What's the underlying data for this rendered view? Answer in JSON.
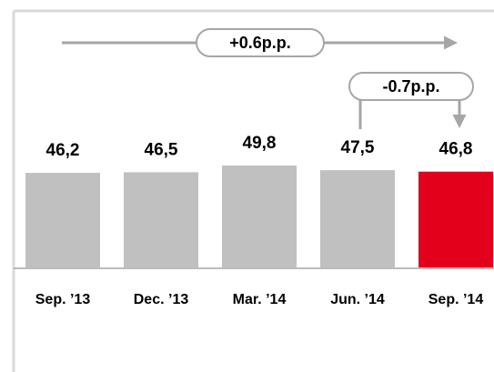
{
  "chart_data": {
    "type": "bar",
    "categories": [
      "Sep. ’13",
      "Dec. ’13",
      "Mar. ’14",
      "Jun. ’14",
      "Sep. ’14"
    ],
    "values": [
      46.2,
      46.5,
      49.8,
      47.5,
      46.8
    ],
    "value_labels": [
      "46,2",
      "46,5",
      "49,8",
      "47,5",
      "46,8"
    ],
    "colors": [
      "#c0c0c0",
      "#c0c0c0",
      "#c0c0c0",
      "#c0c0c0",
      "#e2001a"
    ],
    "annotations": [
      "+0.6p.p.",
      "-0.7p.p."
    ]
  }
}
